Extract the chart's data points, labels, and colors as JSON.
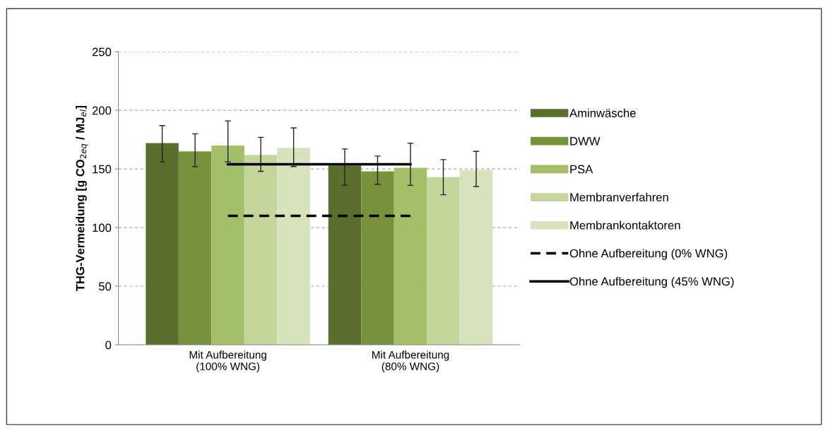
{
  "chart_data": {
    "type": "bar",
    "ylabel": "THG-Vermeidung [g CO$_{2eq}$ / MJ$_{el}$]",
    "categories": [
      "Mit Aufbereitung\n(100% WNG)",
      "Mit Aufbereitung\n(80% WNG)"
    ],
    "series": [
      {
        "name": "Aminwäsche",
        "color": "#5a6e2e",
        "values": [
          172,
          153
        ],
        "errors": [
          [
            156,
            187
          ],
          [
            136,
            167
          ]
        ]
      },
      {
        "name": "DWW",
        "color": "#78923c",
        "values": [
          165,
          148
        ],
        "errors": [
          [
            152,
            180
          ],
          [
            137,
            161
          ]
        ]
      },
      {
        "name": "PSA",
        "color": "#a3bf69",
        "values": [
          170,
          151
        ],
        "errors": [
          [
            156,
            191
          ],
          [
            136,
            172
          ]
        ]
      },
      {
        "name": "Membranverfahren",
        "color": "#c4d69b",
        "values": [
          162,
          143
        ],
        "errors": [
          [
            148,
            177
          ],
          [
            128,
            158
          ]
        ]
      },
      {
        "name": "Membrankontaktoren",
        "color": "#d7e3bc",
        "values": [
          168,
          149
        ],
        "errors": [
          [
            152,
            185
          ],
          [
            135,
            165
          ]
        ]
      },
      {
        "name": "Ohne Aufbereitung (0% WNG)",
        "type": "line",
        "line_style": "dashed",
        "color": "#000000",
        "values": [
          110,
          110
        ]
      },
      {
        "name": "Ohne Aufbereitung (45% WNG)",
        "type": "line",
        "line_style": "solid",
        "color": "#000000",
        "values": [
          154,
          154
        ]
      }
    ],
    "ylim": [
      0,
      250
    ],
    "yticks": [
      0,
      50,
      100,
      150,
      200,
      250
    ],
    "grid": "y",
    "legend": "right"
  }
}
